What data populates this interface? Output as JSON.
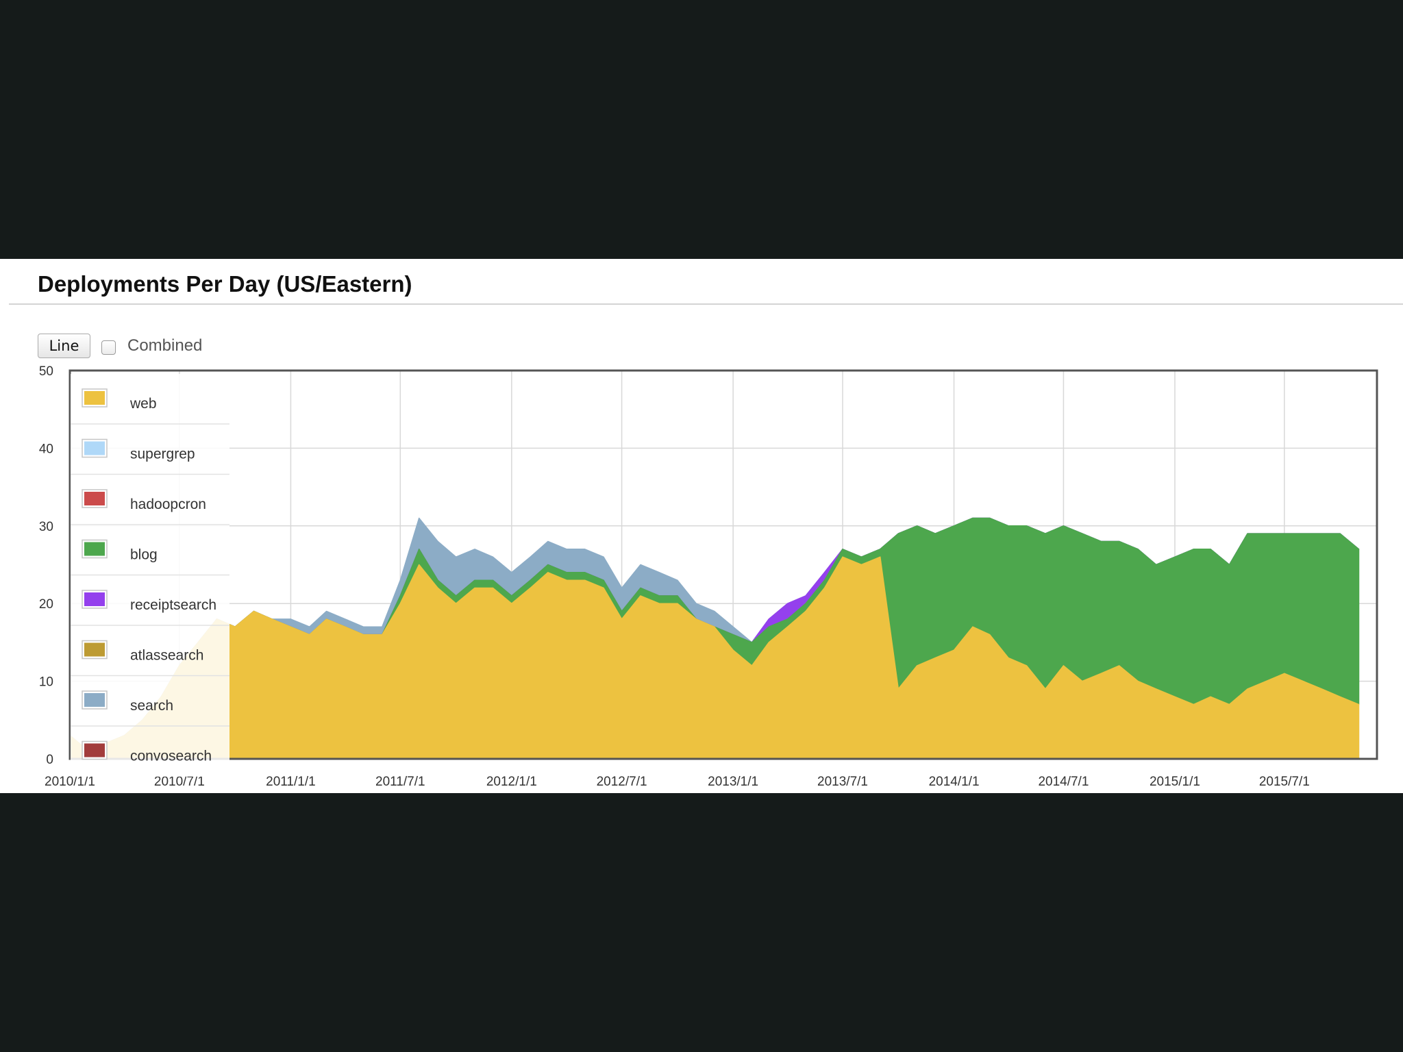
{
  "panel": {
    "title": "Deployments Per Day (US/Eastern)",
    "line_button_label": "Line",
    "combined_label": "Combined",
    "combined_checked": false
  },
  "chart_data": {
    "type": "area",
    "stacked": true,
    "title": "Deployments Per Day (US/Eastern)",
    "xlabel": "",
    "ylabel": "",
    "ylim": [
      0,
      50
    ],
    "yticks": [
      0,
      10,
      20,
      30,
      40,
      50
    ],
    "xlim": [
      "2010-01-01",
      "2015-12-01"
    ],
    "xticks": [
      "2010/1/1",
      "2010/7/1",
      "2011/1/1",
      "2011/7/1",
      "2012/1/1",
      "2012/7/1",
      "2013/1/1",
      "2013/7/1",
      "2014/1/1",
      "2014/7/1",
      "2015/1/1",
      "2015/7/1"
    ],
    "grid": true,
    "legend_position": "top-left, inside plot",
    "x": [
      "2010-01",
      "2010-02",
      "2010-03",
      "2010-04",
      "2010-05",
      "2010-06",
      "2010-07",
      "2010-08",
      "2010-09",
      "2010-10",
      "2010-11",
      "2010-12",
      "2011-01",
      "2011-02",
      "2011-03",
      "2011-04",
      "2011-05",
      "2011-06",
      "2011-07",
      "2011-08",
      "2011-09",
      "2011-10",
      "2011-11",
      "2011-12",
      "2012-01",
      "2012-02",
      "2012-03",
      "2012-04",
      "2012-05",
      "2012-06",
      "2012-07",
      "2012-08",
      "2012-09",
      "2012-10",
      "2012-11",
      "2012-12",
      "2013-01",
      "2013-02",
      "2013-03",
      "2013-04",
      "2013-05",
      "2013-06",
      "2013-07",
      "2013-08",
      "2013-09",
      "2013-10",
      "2013-11",
      "2013-12",
      "2014-01",
      "2014-02",
      "2014-03",
      "2014-04",
      "2014-05",
      "2014-06",
      "2014-07",
      "2014-08",
      "2014-09",
      "2014-10",
      "2014-11",
      "2014-12",
      "2015-01",
      "2015-02",
      "2015-03",
      "2015-04",
      "2015-05",
      "2015-06",
      "2015-07",
      "2015-08",
      "2015-09",
      "2015-10",
      "2015-11"
    ],
    "series": [
      {
        "name": "web",
        "color": "#edc240",
        "values": [
          3,
          1,
          2,
          3,
          5,
          8,
          12,
          15,
          18,
          17,
          19,
          18,
          17,
          16,
          18,
          17,
          16,
          16,
          20,
          25,
          22,
          20,
          22,
          22,
          20,
          22,
          24,
          23,
          23,
          22,
          18,
          21,
          20,
          20,
          18,
          17,
          14,
          12,
          15,
          17,
          19,
          22,
          26,
          25,
          26,
          9,
          12,
          13,
          14,
          17,
          16,
          13,
          12,
          9,
          12,
          10,
          11,
          12,
          10,
          9,
          8,
          7,
          8,
          7,
          9,
          10,
          11,
          10,
          9,
          8,
          7
        ]
      },
      {
        "name": "supergrep",
        "color": "#afd8f8",
        "values": [
          0,
          0,
          0,
          0,
          0,
          0,
          0,
          0,
          0,
          0,
          0,
          0,
          0,
          0,
          0,
          0,
          0,
          0,
          0,
          0,
          0,
          0,
          0,
          0,
          0,
          0,
          0,
          0,
          0,
          0,
          0,
          0,
          0,
          0,
          0,
          0,
          0,
          0,
          0,
          0,
          0,
          0,
          0,
          0,
          0,
          0,
          0,
          0,
          0,
          0,
          0,
          0,
          0,
          0,
          0,
          0,
          0,
          0,
          0,
          0,
          0,
          0,
          0,
          0,
          0,
          0,
          0,
          0,
          0,
          0,
          0
        ]
      },
      {
        "name": "hadoopcron",
        "color": "#cb4b4b",
        "values": [
          0,
          0,
          0,
          0,
          0,
          0,
          0,
          0,
          0,
          0,
          0,
          0,
          0,
          0,
          0,
          0,
          0,
          0,
          0,
          0,
          0,
          0,
          0,
          0,
          0,
          0,
          0,
          0,
          0,
          0,
          0,
          0,
          0,
          0,
          0,
          0,
          0,
          0,
          0,
          0,
          0,
          0,
          0,
          0,
          0,
          0,
          0,
          0,
          0,
          0,
          0,
          0,
          0,
          0,
          0,
          0,
          0,
          0,
          0,
          0,
          0,
          0,
          0,
          0,
          0,
          0,
          0,
          0,
          0,
          0,
          0
        ]
      },
      {
        "name": "blog",
        "color": "#4da74d",
        "values": [
          0,
          0,
          0,
          0,
          0,
          0,
          0,
          0,
          0,
          0,
          0,
          0,
          0,
          0,
          0,
          0,
          0,
          0,
          1,
          2,
          1,
          1,
          1,
          1,
          1,
          1,
          1,
          1,
          1,
          1,
          1,
          1,
          1,
          1,
          0,
          0,
          2,
          3,
          2,
          1,
          1,
          1,
          1,
          1,
          1,
          20,
          18,
          16,
          16,
          14,
          15,
          17,
          18,
          20,
          18,
          19,
          17,
          16,
          17,
          16,
          18,
          20,
          19,
          18,
          20,
          19,
          18,
          19,
          20,
          21,
          20
        ]
      },
      {
        "name": "receiptsearch",
        "color": "#9440ed",
        "values": [
          0,
          0,
          0,
          0,
          0,
          0,
          0,
          0,
          0,
          0,
          0,
          0,
          0,
          0,
          0,
          0,
          0,
          0,
          0,
          0,
          0,
          0,
          0,
          0,
          0,
          0,
          0,
          0,
          0,
          0,
          0,
          0,
          0,
          0,
          0,
          0,
          0,
          0,
          1,
          2,
          1,
          1,
          0,
          0,
          0,
          0,
          0,
          0,
          0,
          0,
          0,
          0,
          0,
          0,
          0,
          0,
          0,
          0,
          0,
          0,
          0,
          0,
          0,
          0,
          0,
          0,
          0,
          0,
          0,
          0,
          0
        ]
      },
      {
        "name": "atlassearch",
        "color": "#bd9b33",
        "values": [
          0,
          0,
          0,
          0,
          0,
          0,
          0,
          0,
          0,
          0,
          0,
          0,
          0,
          0,
          0,
          0,
          0,
          0,
          0,
          0,
          0,
          0,
          0,
          0,
          0,
          0,
          0,
          0,
          0,
          0,
          0,
          0,
          0,
          0,
          0,
          0,
          0,
          0,
          0,
          0,
          0,
          0,
          0,
          0,
          0,
          0,
          0,
          0,
          0,
          0,
          0,
          0,
          0,
          0,
          0,
          0,
          0,
          0,
          0,
          0,
          0,
          0,
          0,
          0,
          0,
          0,
          0,
          0,
          0,
          0,
          0
        ]
      },
      {
        "name": "search",
        "color": "#8cacc6",
        "values": [
          0,
          0,
          0,
          0,
          0,
          0,
          0,
          0,
          0,
          0,
          0,
          0,
          1,
          1,
          1,
          1,
          1,
          1,
          2,
          4,
          5,
          5,
          4,
          3,
          3,
          3,
          3,
          3,
          3,
          3,
          3,
          3,
          3,
          2,
          2,
          2,
          1,
          0,
          0,
          0,
          0,
          0,
          0,
          0,
          0,
          0,
          0,
          0,
          0,
          0,
          0,
          0,
          0,
          0,
          0,
          0,
          0,
          0,
          0,
          0,
          0,
          0,
          0,
          0,
          0,
          0,
          0,
          0,
          0,
          0,
          0
        ]
      },
      {
        "name": "convosearch",
        "color": "#a23c3c",
        "values": [
          0,
          0,
          0,
          0,
          0,
          0,
          0,
          0,
          0,
          0,
          0,
          0,
          0,
          0,
          0,
          0,
          0,
          0,
          0,
          0,
          0,
          0,
          0,
          0,
          0,
          0,
          0,
          0,
          0,
          0,
          0,
          0,
          0,
          0,
          0,
          0,
          0,
          0,
          0,
          0,
          0,
          0,
          0,
          0,
          0,
          0,
          0,
          0,
          0,
          0,
          0,
          0,
          0,
          0,
          0,
          0,
          0,
          0,
          0,
          0,
          0,
          0,
          0,
          0,
          0,
          0,
          0,
          0,
          0,
          0,
          0
        ]
      }
    ]
  }
}
